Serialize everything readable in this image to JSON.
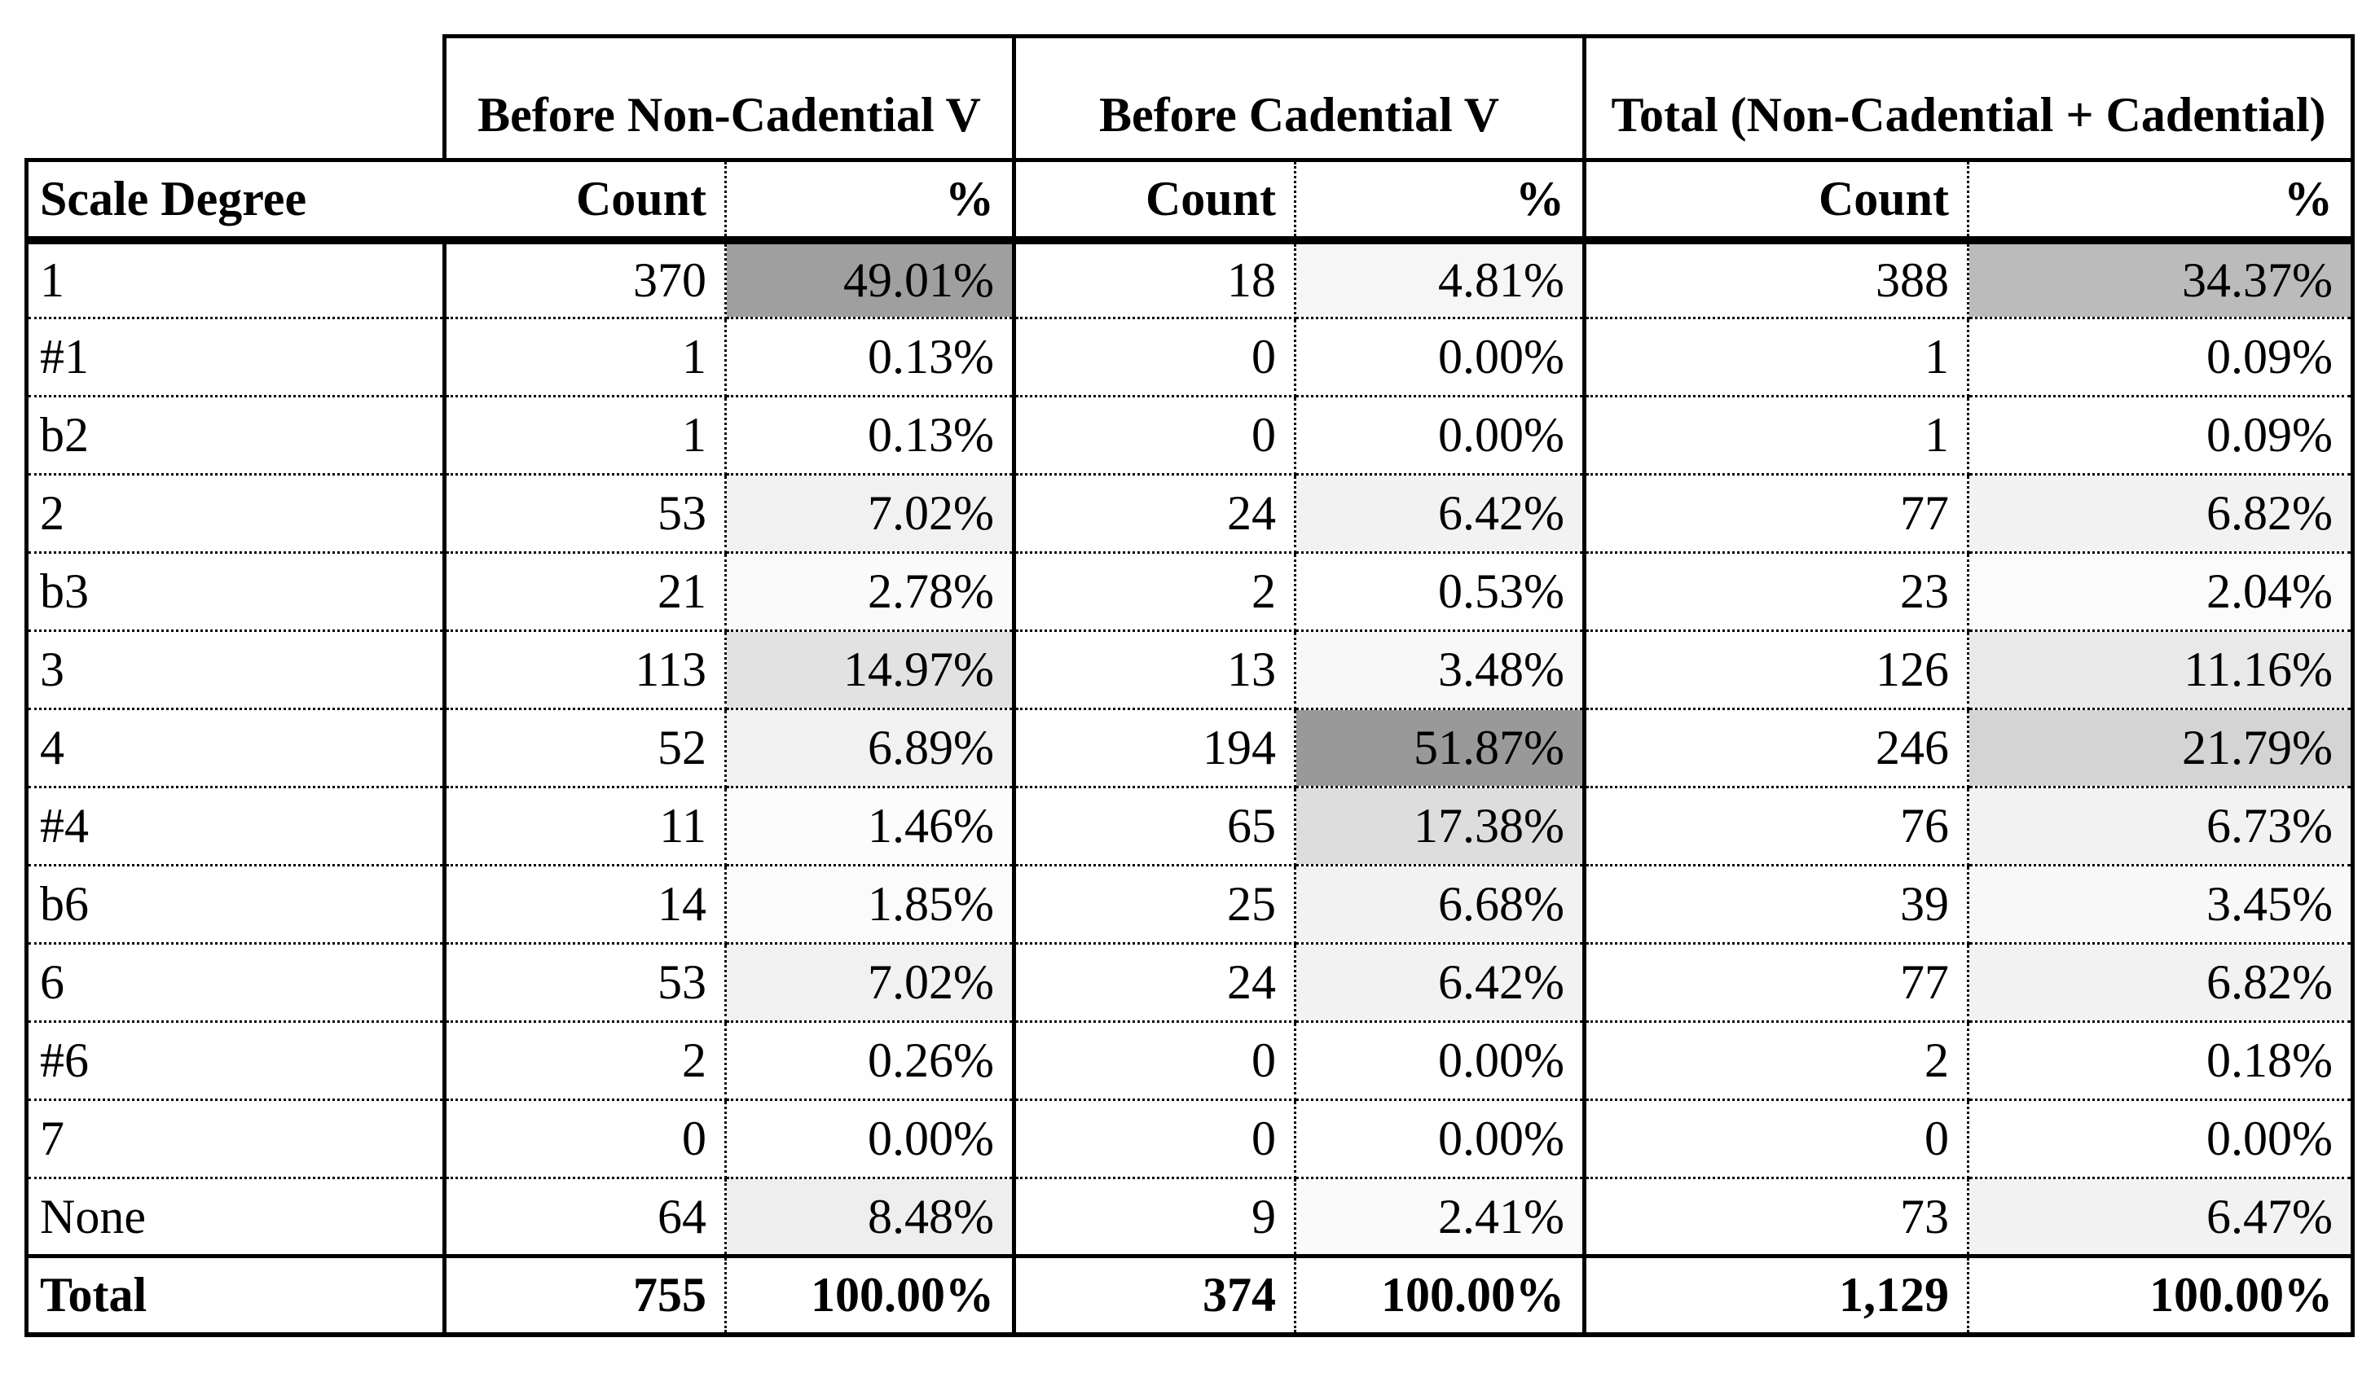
{
  "page": {
    "background": "#ffffff",
    "text_color": "#000000"
  },
  "table": {
    "row_header": "Scale Degree",
    "groups": [
      {
        "label": "Before Non-Cadential V",
        "count_header": "Count",
        "pct_header": "%"
      },
      {
        "label": "Before Cadential V",
        "count_header": "Count",
        "pct_header": "%"
      },
      {
        "label": "Total (Non-Cadential + Cadential)",
        "count_header": "Count",
        "pct_header": "%"
      }
    ],
    "rows": [
      {
        "label": "1",
        "g1_count": "370",
        "g1_pct": "49.01%",
        "g2_count": "18",
        "g2_pct": "4.81%",
        "g3_count": "388",
        "g3_pct": "34.37%"
      },
      {
        "label": "#1",
        "g1_count": "1",
        "g1_pct": "0.13%",
        "g2_count": "0",
        "g2_pct": "0.00%",
        "g3_count": "1",
        "g3_pct": "0.09%"
      },
      {
        "label": "b2",
        "g1_count": "1",
        "g1_pct": "0.13%",
        "g2_count": "0",
        "g2_pct": "0.00%",
        "g3_count": "1",
        "g3_pct": "0.09%"
      },
      {
        "label": "2",
        "g1_count": "53",
        "g1_pct": "7.02%",
        "g2_count": "24",
        "g2_pct": "6.42%",
        "g3_count": "77",
        "g3_pct": "6.82%"
      },
      {
        "label": "b3",
        "g1_count": "21",
        "g1_pct": "2.78%",
        "g2_count": "2",
        "g2_pct": "0.53%",
        "g3_count": "23",
        "g3_pct": "2.04%"
      },
      {
        "label": "3",
        "g1_count": "113",
        "g1_pct": "14.97%",
        "g2_count": "13",
        "g2_pct": "3.48%",
        "g3_count": "126",
        "g3_pct": "11.16%"
      },
      {
        "label": "4",
        "g1_count": "52",
        "g1_pct": "6.89%",
        "g2_count": "194",
        "g2_pct": "51.87%",
        "g3_count": "246",
        "g3_pct": "21.79%"
      },
      {
        "label": "#4",
        "g1_count": "11",
        "g1_pct": "1.46%",
        "g2_count": "65",
        "g2_pct": "17.38%",
        "g3_count": "76",
        "g3_pct": "6.73%"
      },
      {
        "label": "b6",
        "g1_count": "14",
        "g1_pct": "1.85%",
        "g2_count": "25",
        "g2_pct": "6.68%",
        "g3_count": "39",
        "g3_pct": "3.45%"
      },
      {
        "label": "6",
        "g1_count": "53",
        "g1_pct": "7.02%",
        "g2_count": "24",
        "g2_pct": "6.42%",
        "g3_count": "77",
        "g3_pct": "6.82%"
      },
      {
        "label": "#6",
        "g1_count": "2",
        "g1_pct": "0.26%",
        "g2_count": "0",
        "g2_pct": "0.00%",
        "g3_count": "2",
        "g3_pct": "0.18%"
      },
      {
        "label": "7",
        "g1_count": "0",
        "g1_pct": "0.00%",
        "g2_count": "0",
        "g2_pct": "0.00%",
        "g3_count": "0",
        "g3_pct": "0.00%"
      },
      {
        "label": "None",
        "g1_count": "64",
        "g1_pct": "8.48%",
        "g2_count": "9",
        "g2_pct": "2.41%",
        "g3_count": "73",
        "g3_pct": "6.47%"
      }
    ],
    "total": {
      "label": "Total",
      "g1_count": "755",
      "g1_pct": "100.00%",
      "g2_count": "374",
      "g2_pct": "100.00%",
      "g3_count": "1,129",
      "g3_pct": "100.00%"
    },
    "conditional_shading": {
      "min_color": "#ffffff",
      "max_color": "#999999",
      "max_pct": 51.87
    }
  },
  "chart_data": {
    "type": "table",
    "title": "Scale degrees before non-cadential and cadential V",
    "categories": [
      "1",
      "#1",
      "b2",
      "2",
      "b3",
      "3",
      "4",
      "#4",
      "b6",
      "6",
      "#6",
      "7",
      "None"
    ],
    "series": [
      {
        "name": "Before Non-Cadential V Count",
        "values": [
          370,
          1,
          1,
          53,
          21,
          113,
          52,
          11,
          14,
          53,
          2,
          0,
          64
        ]
      },
      {
        "name": "Before Non-Cadential V %",
        "values": [
          49.01,
          0.13,
          0.13,
          7.02,
          2.78,
          14.97,
          6.89,
          1.46,
          1.85,
          7.02,
          0.26,
          0.0,
          8.48
        ]
      },
      {
        "name": "Before Cadential V Count",
        "values": [
          18,
          0,
          0,
          24,
          2,
          13,
          194,
          65,
          25,
          24,
          0,
          0,
          9
        ]
      },
      {
        "name": "Before Cadential V %",
        "values": [
          4.81,
          0.0,
          0.0,
          6.42,
          0.53,
          3.48,
          51.87,
          17.38,
          6.68,
          6.42,
          0.0,
          0.0,
          2.41
        ]
      },
      {
        "name": "Total Count",
        "values": [
          388,
          1,
          1,
          77,
          23,
          126,
          246,
          76,
          39,
          77,
          2,
          0,
          73
        ]
      },
      {
        "name": "Total %",
        "values": [
          34.37,
          0.09,
          0.09,
          6.82,
          2.04,
          11.16,
          21.79,
          6.73,
          3.45,
          6.82,
          0.18,
          0.0,
          6.47
        ]
      }
    ],
    "totals": {
      "counts": [
        755,
        374,
        1129
      ],
      "pcts": [
        100.0,
        100.0,
        100.0
      ]
    },
    "legend_position": "none",
    "grid": "dotted-inner-solid-outer",
    "shading_note": "percent cells filled on white-to-gray scale proportional to value"
  }
}
